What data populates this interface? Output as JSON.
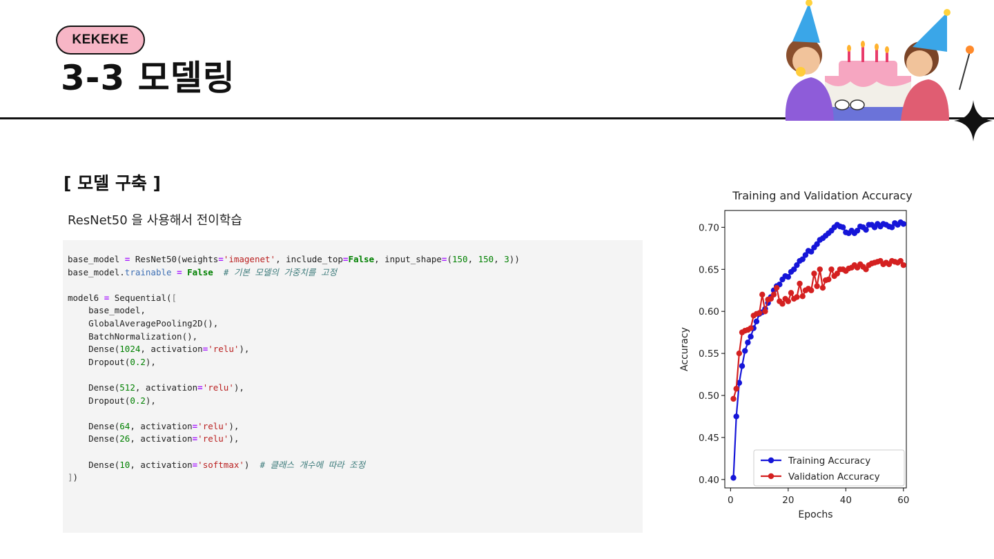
{
  "header": {
    "badge": "KEKEKE",
    "title": "3-3 모델링"
  },
  "section": {
    "title": "[ 모델 구축 ]",
    "subtitle": "ResNet50 을 사용해서 전이학습"
  },
  "code": {
    "lines": [
      [
        [
          "plain",
          "base_model "
        ],
        [
          "op",
          "="
        ],
        [
          "plain",
          " ResNet50(weights"
        ],
        [
          "op",
          "="
        ],
        [
          "str",
          "'imagenet'"
        ],
        [
          "plain",
          ", include_top"
        ],
        [
          "op",
          "="
        ],
        [
          "kw",
          "False"
        ],
        [
          "plain",
          ", input_shape"
        ],
        [
          "op",
          "="
        ],
        [
          "plain",
          "("
        ],
        [
          "num",
          "150"
        ],
        [
          "plain",
          ", "
        ],
        [
          "num",
          "150"
        ],
        [
          "plain",
          ", "
        ],
        [
          "num",
          "3"
        ],
        [
          "plain",
          "))"
        ]
      ],
      [
        [
          "plain",
          "base_model."
        ],
        [
          "attr",
          "trainable"
        ],
        [
          "plain",
          " "
        ],
        [
          "op",
          "="
        ],
        [
          "plain",
          " "
        ],
        [
          "kw",
          "False"
        ],
        [
          "plain",
          "  "
        ],
        [
          "cmt",
          "# 기본 모델의 가중치를 고정"
        ]
      ],
      [],
      [
        [
          "plain",
          "model6 "
        ],
        [
          "op",
          "="
        ],
        [
          "plain",
          " Sequential("
        ],
        [
          "brk",
          "["
        ]
      ],
      [
        [
          "plain",
          "    base_model,"
        ]
      ],
      [
        [
          "plain",
          "    GlobalAveragePooling2D(),"
        ]
      ],
      [
        [
          "plain",
          "    BatchNormalization(),"
        ]
      ],
      [
        [
          "plain",
          "    Dense("
        ],
        [
          "num",
          "1024"
        ],
        [
          "plain",
          ", activation"
        ],
        [
          "op",
          "="
        ],
        [
          "str",
          "'relu'"
        ],
        [
          "plain",
          "),"
        ]
      ],
      [
        [
          "plain",
          "    Dropout("
        ],
        [
          "num",
          "0.2"
        ],
        [
          "plain",
          "),"
        ]
      ],
      [],
      [
        [
          "plain",
          "    Dense("
        ],
        [
          "num",
          "512"
        ],
        [
          "plain",
          ", activation"
        ],
        [
          "op",
          "="
        ],
        [
          "str",
          "'relu'"
        ],
        [
          "plain",
          "),"
        ]
      ],
      [
        [
          "plain",
          "    Dropout("
        ],
        [
          "num",
          "0.2"
        ],
        [
          "plain",
          "),"
        ]
      ],
      [],
      [
        [
          "plain",
          "    Dense("
        ],
        [
          "num",
          "64"
        ],
        [
          "plain",
          ", activation"
        ],
        [
          "op",
          "="
        ],
        [
          "str",
          "'relu'"
        ],
        [
          "plain",
          "),"
        ]
      ],
      [
        [
          "plain",
          "    Dense("
        ],
        [
          "num",
          "26"
        ],
        [
          "plain",
          ", activation"
        ],
        [
          "op",
          "="
        ],
        [
          "str",
          "'relu'"
        ],
        [
          "plain",
          "),"
        ]
      ],
      [],
      [
        [
          "plain",
          "    Dense("
        ],
        [
          "num",
          "10"
        ],
        [
          "plain",
          ", activation"
        ],
        [
          "op",
          "="
        ],
        [
          "str",
          "'softmax'"
        ],
        [
          "plain",
          ")  "
        ],
        [
          "cmt",
          "# 클래스 개수에 따라 조정"
        ]
      ],
      [
        [
          "brk",
          "]"
        ],
        [
          "plain",
          ")"
        ]
      ]
    ]
  },
  "illustration": {
    "icon": "birthday-party-icon",
    "sparkle_icon": "four-point-star-icon"
  },
  "chart_data": {
    "type": "line",
    "title": "Training and Validation Accuracy",
    "xlabel": "Epochs",
    "ylabel": "Accuracy",
    "xlim": [
      -2,
      61
    ],
    "ylim": [
      0.39,
      0.72
    ],
    "xticks": [
      0,
      20,
      40,
      60
    ],
    "yticks": [
      0.4,
      0.45,
      0.5,
      0.55,
      0.6,
      0.65,
      0.7
    ],
    "grid": false,
    "legend_position": "lower-right",
    "x": [
      1,
      2,
      3,
      4,
      5,
      6,
      7,
      8,
      9,
      10,
      11,
      12,
      13,
      14,
      15,
      16,
      17,
      18,
      19,
      20,
      21,
      22,
      23,
      24,
      25,
      26,
      27,
      28,
      29,
      30,
      31,
      32,
      33,
      34,
      35,
      36,
      37,
      38,
      39,
      40,
      41,
      42,
      43,
      44,
      45,
      46,
      47,
      48,
      49,
      50,
      51,
      52,
      53,
      54,
      55,
      56,
      57,
      58,
      59,
      60
    ],
    "series": [
      {
        "name": "Training Accuracy",
        "color": "#1515d8",
        "values": [
          0.402,
          0.475,
          0.515,
          0.535,
          0.553,
          0.563,
          0.57,
          0.58,
          0.588,
          0.597,
          0.599,
          0.603,
          0.61,
          0.617,
          0.625,
          0.63,
          0.632,
          0.638,
          0.642,
          0.641,
          0.647,
          0.65,
          0.655,
          0.66,
          0.662,
          0.667,
          0.672,
          0.671,
          0.676,
          0.68,
          0.685,
          0.687,
          0.69,
          0.693,
          0.696,
          0.7,
          0.703,
          0.701,
          0.7,
          0.694,
          0.693,
          0.696,
          0.693,
          0.696,
          0.701,
          0.7,
          0.697,
          0.703,
          0.703,
          0.7,
          0.704,
          0.701,
          0.704,
          0.703,
          0.701,
          0.7,
          0.705,
          0.703,
          0.706,
          0.704
        ]
      },
      {
        "name": "Validation Accuracy",
        "color": "#d42020",
        "values": [
          0.496,
          0.508,
          0.55,
          0.575,
          0.577,
          0.578,
          0.58,
          0.595,
          0.597,
          0.598,
          0.62,
          0.6,
          0.614,
          0.615,
          0.62,
          0.628,
          0.612,
          0.609,
          0.615,
          0.612,
          0.622,
          0.615,
          0.617,
          0.633,
          0.618,
          0.625,
          0.627,
          0.625,
          0.645,
          0.63,
          0.65,
          0.628,
          0.637,
          0.638,
          0.65,
          0.642,
          0.645,
          0.65,
          0.65,
          0.648,
          0.651,
          0.652,
          0.655,
          0.652,
          0.656,
          0.653,
          0.65,
          0.655,
          0.657,
          0.658,
          0.659,
          0.66,
          0.656,
          0.658,
          0.656,
          0.66,
          0.659,
          0.658,
          0.66,
          0.655
        ]
      }
    ]
  }
}
